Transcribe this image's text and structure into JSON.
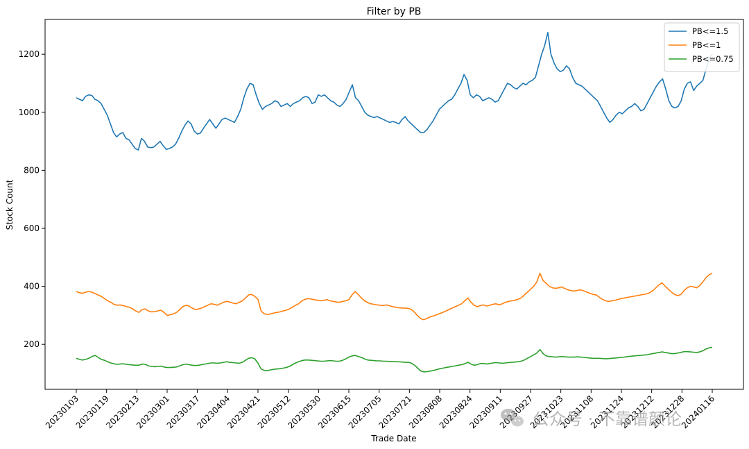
{
  "chart_data": {
    "type": "line",
    "title": "Filter by PB",
    "xlabel": "Trade Date",
    "ylabel": "Stock Count",
    "ylim": [
      45,
      1320
    ],
    "yticks": [
      200,
      400,
      600,
      800,
      1000,
      1200
    ],
    "grid": false,
    "legend_position": "top-right",
    "x_tick_labels": [
      "20230103",
      "20230119",
      "20230213",
      "20230301",
      "20230317",
      "20230404",
      "20230421",
      "20230512",
      "20230530",
      "20230615",
      "20230705",
      "20230721",
      "20230808",
      "20230824",
      "20230911",
      "20230927",
      "20231023",
      "20231108",
      "20231124",
      "20231212",
      "20231228",
      "20240116"
    ],
    "series": [
      {
        "name": "PB<=1.5",
        "color": "#1f77b4",
        "values": [
          1050,
          1045,
          1040,
          1055,
          1060,
          1058,
          1045,
          1040,
          1030,
          1010,
          990,
          960,
          930,
          915,
          925,
          930,
          910,
          905,
          890,
          875,
          870,
          910,
          900,
          880,
          878,
          880,
          890,
          900,
          885,
          872,
          875,
          880,
          890,
          910,
          935,
          955,
          970,
          960,
          935,
          925,
          928,
          945,
          960,
          975,
          960,
          945,
          960,
          975,
          980,
          975,
          970,
          965,
          985,
          1010,
          1050,
          1080,
          1100,
          1095,
          1060,
          1030,
          1010,
          1020,
          1025,
          1030,
          1040,
          1035,
          1020,
          1025,
          1030,
          1020,
          1030,
          1035,
          1040,
          1050,
          1055,
          1050,
          1030,
          1035,
          1060,
          1055,
          1060,
          1050,
          1040,
          1035,
          1025,
          1020,
          1030,
          1045,
          1070,
          1095,
          1050,
          1040,
          1020,
          1000,
          990,
          985,
          982,
          985,
          980,
          975,
          970,
          965,
          968,
          965,
          960,
          975,
          985,
          970,
          960,
          950,
          940,
          930,
          930,
          940,
          955,
          970,
          990,
          1010,
          1020,
          1030,
          1040,
          1045,
          1060,
          1080,
          1100,
          1130,
          1110,
          1060,
          1050,
          1060,
          1055,
          1040,
          1045,
          1050,
          1045,
          1035,
          1040,
          1060,
          1080,
          1100,
          1095,
          1085,
          1080,
          1090,
          1100,
          1095,
          1105,
          1110,
          1120,
          1160,
          1200,
          1230,
          1275,
          1200,
          1170,
          1150,
          1140,
          1145,
          1160,
          1150,
          1120,
          1100,
          1095,
          1090,
          1080,
          1070,
          1060,
          1050,
          1040,
          1020,
          1000,
          980,
          965,
          975,
          990,
          1000,
          995,
          1005,
          1015,
          1020,
          1030,
          1020,
          1005,
          1010,
          1030,
          1050,
          1070,
          1090,
          1105,
          1115,
          1080,
          1040,
          1020,
          1015,
          1020,
          1040,
          1080,
          1100,
          1105,
          1075,
          1090,
          1100,
          1110,
          1150,
          1185,
          1200
        ]
      },
      {
        "name": "PB<=1",
        "color": "#ff7f0e",
        "values": [
          382,
          378,
          376,
          380,
          382,
          380,
          375,
          370,
          365,
          358,
          350,
          345,
          338,
          335,
          336,
          334,
          330,
          328,
          322,
          315,
          310,
          320,
          322,
          315,
          312,
          313,
          315,
          318,
          310,
          300,
          302,
          305,
          310,
          320,
          330,
          335,
          332,
          325,
          320,
          322,
          325,
          330,
          335,
          340,
          338,
          335,
          340,
          345,
          348,
          346,
          342,
          340,
          345,
          350,
          360,
          370,
          372,
          365,
          355,
          315,
          305,
          303,
          305,
          308,
          310,
          312,
          315,
          318,
          322,
          328,
          335,
          340,
          350,
          355,
          358,
          356,
          354,
          352,
          350,
          352,
          354,
          350,
          348,
          346,
          345,
          348,
          350,
          354,
          370,
          382,
          372,
          360,
          350,
          344,
          340,
          338,
          336,
          335,
          334,
          336,
          333,
          330,
          328,
          326,
          325,
          325,
          324,
          320,
          310,
          298,
          288,
          285,
          290,
          295,
          298,
          302,
          306,
          310,
          315,
          320,
          325,
          330,
          335,
          340,
          350,
          360,
          345,
          335,
          330,
          334,
          336,
          332,
          335,
          338,
          340,
          336,
          340,
          345,
          348,
          350,
          352,
          355,
          360,
          370,
          380,
          390,
          400,
          415,
          445,
          420,
          410,
          400,
          395,
          393,
          395,
          398,
          392,
          388,
          385,
          384,
          386,
          388,
          384,
          380,
          376,
          372,
          370,
          362,
          355,
          350,
          348,
          350,
          352,
          355,
          358,
          360,
          362,
          364,
          366,
          368,
          370,
          372,
          374,
          378,
          385,
          395,
          405,
          412,
          400,
          390,
          380,
          372,
          368,
          372,
          385,
          395,
          400,
          398,
          395,
          402,
          415,
          430,
          440,
          445
        ]
      },
      {
        "name": "PB<=0.75",
        "color": "#2ca02c",
        "values": [
          152,
          148,
          146,
          148,
          152,
          158,
          162,
          155,
          148,
          145,
          140,
          136,
          133,
          131,
          132,
          133,
          131,
          130,
          129,
          128,
          128,
          132,
          131,
          126,
          124,
          123,
          124,
          125,
          122,
          120,
          120,
          121,
          122,
          126,
          130,
          132,
          130,
          128,
          127,
          128,
          130,
          132,
          134,
          136,
          136,
          135,
          136,
          138,
          140,
          138,
          137,
          136,
          135,
          138,
          145,
          152,
          154,
          150,
          135,
          115,
          110,
          109,
          112,
          114,
          115,
          116,
          118,
          120,
          124,
          130,
          136,
          140,
          144,
          146,
          146,
          145,
          144,
          143,
          142,
          142,
          143,
          144,
          143,
          142,
          142,
          145,
          150,
          156,
          160,
          162,
          158,
          155,
          150,
          146,
          145,
          144,
          143,
          143,
          142,
          142,
          141,
          141,
          140,
          140,
          139,
          138,
          138,
          135,
          128,
          118,
          108,
          105,
          106,
          108,
          110,
          113,
          116,
          118,
          120,
          122,
          124,
          126,
          128,
          130,
          133,
          138,
          132,
          128,
          130,
          134,
          134,
          132,
          134,
          136,
          137,
          136,
          135,
          136,
          137,
          138,
          139,
          140,
          142,
          146,
          152,
          158,
          164,
          170,
          182,
          168,
          160,
          158,
          157,
          156,
          157,
          158,
          157,
          156,
          156,
          156,
          157,
          156,
          155,
          154,
          153,
          152,
          152,
          152,
          151,
          150,
          151,
          152,
          153,
          154,
          155,
          156,
          158,
          159,
          160,
          161,
          162,
          163,
          164,
          166,
          168,
          170,
          172,
          174,
          172,
          170,
          168,
          168,
          170,
          172,
          175,
          175,
          174,
          173,
          172,
          174,
          178,
          184,
          188,
          190
        ]
      }
    ]
  },
  "watermark": {
    "icon": "wechat-icon",
    "label": "公众号 · 不靠谱颜论"
  }
}
